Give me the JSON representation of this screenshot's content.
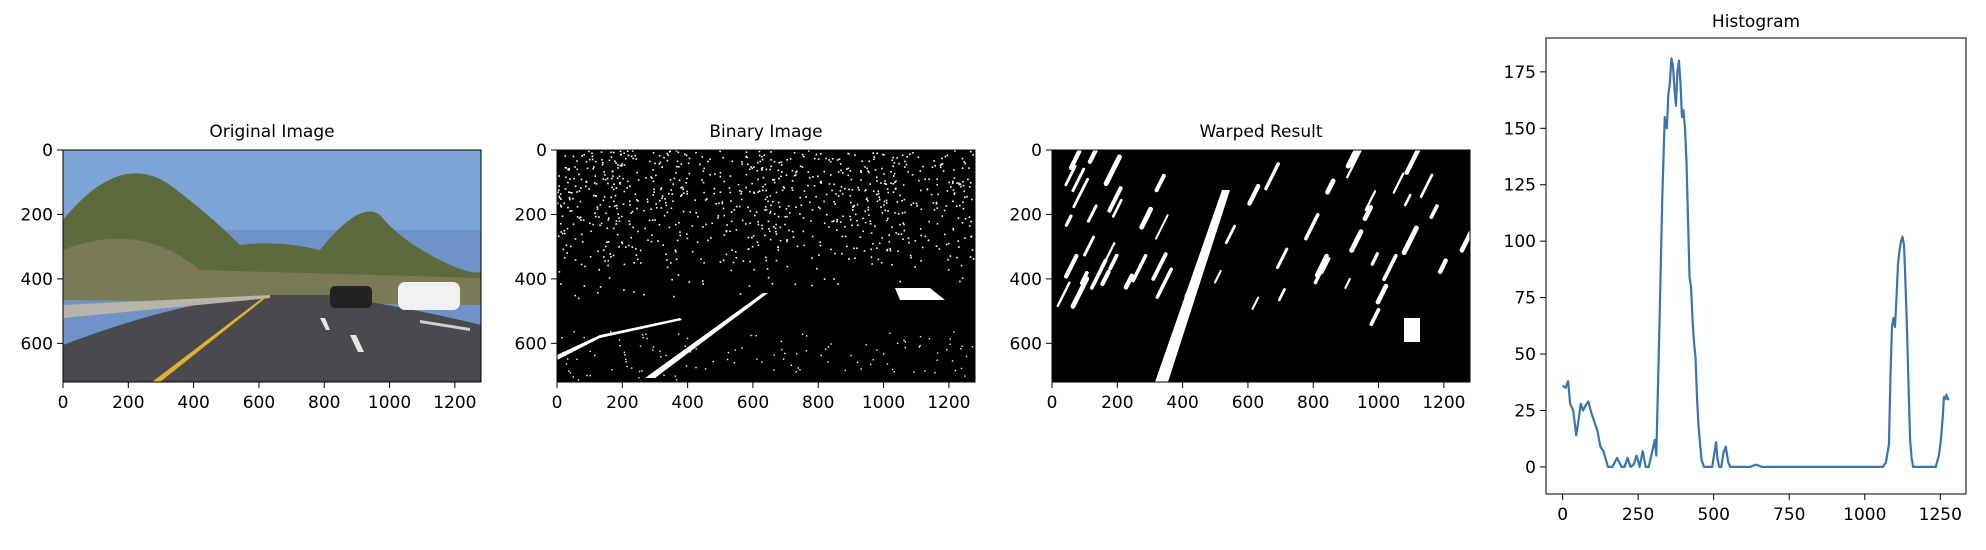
{
  "panels": [
    {
      "title": "Original Image"
    },
    {
      "title": "Binary Image"
    },
    {
      "title": "Warped Result"
    }
  ],
  "image_axes": {
    "x_ticks": [
      "0",
      "200",
      "400",
      "600",
      "800",
      "1000",
      "1200"
    ],
    "y_ticks": [
      "0",
      "200",
      "400",
      "600"
    ],
    "xlim": [
      0,
      1280
    ],
    "ylim": [
      720,
      0
    ]
  },
  "colors": {
    "line": "#3a75b0",
    "sky": "#6f93c8",
    "road": "#4a4a4e",
    "lane_yellow": "#e1b12c"
  },
  "chart_data": {
    "type": "line",
    "title": "Histogram",
    "xlabel": "",
    "ylabel": "",
    "xlim": [
      -55,
      1335
    ],
    "ylim": [
      -12,
      190
    ],
    "x_ticks": [
      0,
      250,
      500,
      750,
      1000,
      1250
    ],
    "y_ticks": [
      0,
      25,
      50,
      75,
      100,
      125,
      150,
      175
    ],
    "grid": false,
    "series": [
      {
        "x": [
          0,
          10,
          18,
          25,
          35,
          45,
          52,
          60,
          68,
          75,
          85,
          95,
          105,
          115,
          125,
          135,
          150,
          165,
          180,
          195,
          205,
          215,
          225,
          235,
          245,
          255,
          265,
          275,
          285,
          295,
          305,
          310,
          320,
          330,
          338,
          345,
          350,
          355,
          360,
          365,
          370,
          375,
          380,
          385,
          390,
          395,
          400,
          405,
          410,
          415,
          420,
          425,
          430,
          435,
          440,
          445,
          450,
          455,
          460,
          468,
          475,
          485,
          495,
          502,
          508,
          512,
          518,
          525,
          532,
          540,
          548,
          555,
          560,
          580,
          620,
          640,
          660,
          700,
          750,
          800,
          850,
          900,
          950,
          1000,
          1020,
          1040,
          1060,
          1070,
          1080,
          1085,
          1090,
          1095,
          1100,
          1105,
          1110,
          1115,
          1120,
          1125,
          1130,
          1135,
          1140,
          1145,
          1150,
          1155,
          1160,
          1165,
          1170,
          1180,
          1200,
          1220,
          1235,
          1245,
          1252,
          1258,
          1262,
          1266,
          1270,
          1275,
          1280
        ],
        "y": [
          36,
          35,
          38,
          28,
          25,
          14,
          20,
          28,
          25,
          27,
          29,
          24,
          20,
          16,
          9,
          7,
          0,
          0,
          4,
          0,
          0,
          4,
          0,
          1,
          5,
          0,
          7,
          0,
          0,
          6,
          12,
          5,
          60,
          120,
          155,
          150,
          165,
          170,
          181,
          178,
          168,
          160,
          175,
          180,
          170,
          155,
          158,
          150,
          135,
          110,
          84,
          80,
          65,
          55,
          48,
          30,
          18,
          10,
          3,
          0,
          0,
          0,
          0,
          6,
          11,
          4,
          0,
          0,
          6,
          9,
          2,
          0,
          0,
          0,
          0,
          1,
          0,
          0,
          0,
          0,
          0,
          0,
          0,
          0,
          0,
          0,
          0,
          2,
          10,
          40,
          62,
          66,
          62,
          75,
          90,
          96,
          100,
          102,
          98,
          80,
          60,
          35,
          12,
          4,
          0,
          0,
          0,
          0,
          0,
          0,
          0,
          5,
          12,
          22,
          31,
          30,
          32,
          30,
          30
        ]
      }
    ]
  }
}
